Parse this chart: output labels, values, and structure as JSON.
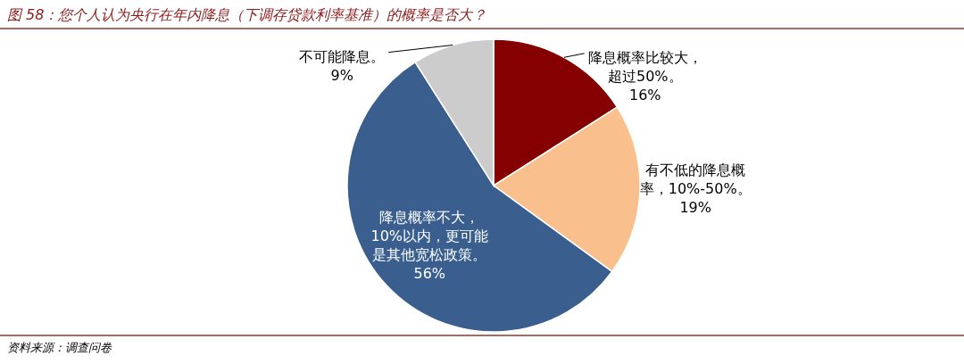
{
  "chart_data": {
    "type": "pie",
    "title": "图 58：您个人认为央行在年内降息（下调存贷款利率基准）的概率是否大？",
    "categories": [
      "降息概率比较大，超过50%。",
      "有不低的降息概率，10%-50%。",
      "降息概率不大，10%以内，更可能是其他宽松政策。",
      "不可能降息。"
    ],
    "values": [
      16,
      19,
      56,
      9
    ],
    "value_labels": [
      "16%",
      "19%",
      "56%",
      "9%"
    ],
    "colors": [
      "#850000",
      "#f9c08e",
      "#3a5f8e",
      "#cccccc"
    ],
    "annotations": [
      "资料来源：调查问卷"
    ]
  }
}
